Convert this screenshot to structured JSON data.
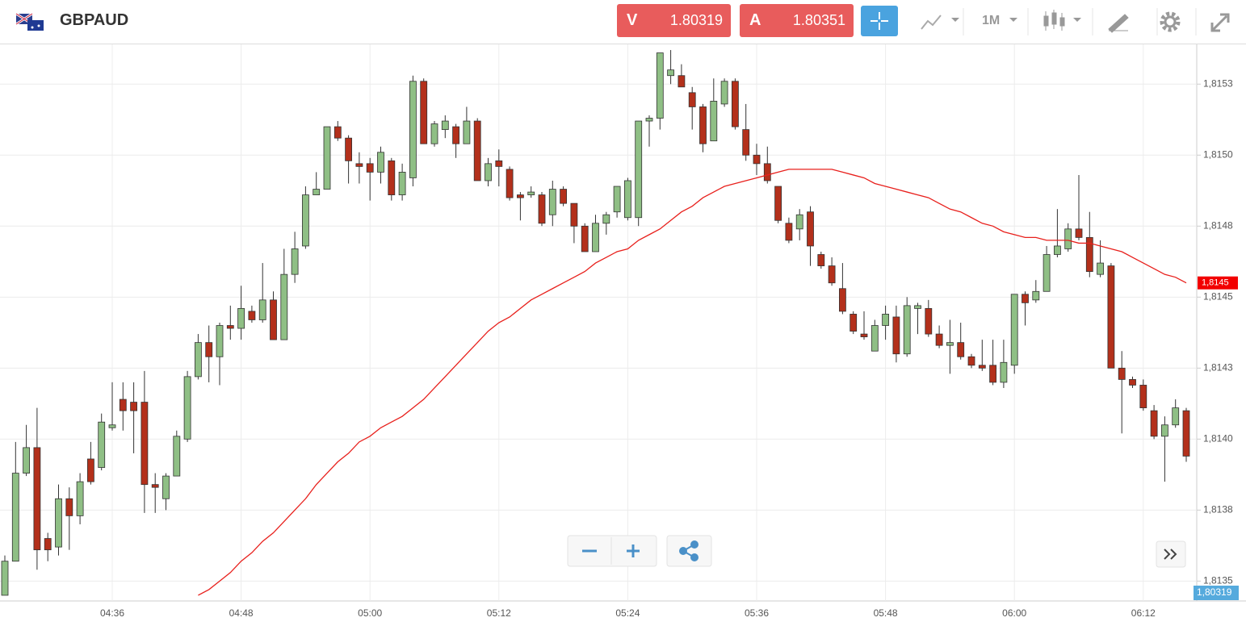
{
  "header": {
    "symbol": "GBPAUD",
    "sell": {
      "label": "V",
      "price": "1.80319"
    },
    "buy": {
      "label": "A",
      "price": "1.80351"
    },
    "timeframe": "1M"
  },
  "chart_data": {
    "type": "candlestick",
    "categories": [
      null,
      null,
      null,
      null,
      null,
      null,
      null,
      null,
      null,
      null,
      "04:36",
      null,
      null,
      null,
      null,
      null,
      null,
      null,
      null,
      null,
      null,
      null,
      "04:48",
      null,
      null,
      null,
      null,
      null,
      null,
      null,
      null,
      null,
      null,
      null,
      "05:00",
      null,
      null,
      null,
      null,
      null,
      null,
      null,
      null,
      null,
      null,
      null,
      "05:12",
      null,
      null,
      null,
      null,
      null,
      null,
      null,
      null,
      null,
      null,
      null,
      "05:24",
      null,
      null,
      null,
      null,
      null,
      null,
      null,
      null,
      null,
      null,
      null,
      "05:36",
      null,
      null,
      null,
      null,
      null,
      null,
      null,
      null,
      null,
      null,
      null,
      "05:48",
      null,
      null,
      null,
      null,
      null,
      null,
      null,
      null,
      null,
      null,
      null,
      "06:00",
      null,
      null,
      null,
      null,
      null,
      null,
      null,
      null,
      null,
      null,
      null,
      "06:12",
      null,
      null,
      null,
      null
    ],
    "open": [
      1.81345,
      1.81357,
      1.81388,
      1.81397,
      1.81365,
      1.81362,
      1.81379,
      1.81373,
      1.81393,
      1.8139,
      1.81404,
      1.81414,
      1.81413,
      1.81413,
      1.81384,
      1.81379,
      1.81387,
      1.814,
      1.81422,
      1.81434,
      1.81429,
      1.8144,
      1.81439,
      1.81445,
      1.81442,
      1.81449,
      1.81435,
      1.81458,
      1.81468,
      1.81486,
      1.81488,
      1.8151,
      1.81506,
      1.81497,
      1.81497,
      1.81494,
      1.81498,
      1.81486,
      1.81492,
      1.81526,
      1.81504,
      1.81509,
      1.8151,
      1.81504,
      1.81512,
      1.81491,
      1.81498,
      1.81495,
      1.81486,
      1.81486,
      1.81486,
      1.81479,
      1.81488,
      1.81483,
      1.81475,
      1.81466,
      1.81476,
      1.8148,
      1.81478,
      1.81478,
      1.81512,
      1.81513,
      1.81528,
      1.81528,
      1.81522,
      1.81517,
      1.81505,
      1.81518,
      1.81526,
      1.81509,
      1.815,
      1.81497,
      1.81489,
      1.81476,
      1.81474,
      1.8148,
      1.81465,
      1.81461,
      1.81453,
      1.81444,
      1.81437,
      1.81431,
      1.8144,
      1.81443,
      1.8143,
      1.81446,
      1.81446,
      1.81437,
      1.81433,
      1.81434,
      1.81429,
      1.81426,
      1.81426,
      1.8142,
      1.81426,
      1.81451,
      1.81449,
      1.81452,
      1.81465,
      1.81467,
      1.81474,
      1.81471,
      1.81458,
      1.81461,
      1.81425,
      1.81421,
      1.81419,
      1.8141,
      1.81401,
      1.81405,
      1.8141
    ],
    "high": [
      1.81359,
      1.81399,
      1.81405,
      1.81411,
      1.81367,
      1.81384,
      1.81383,
      1.81388,
      1.81399,
      1.81409,
      1.8142,
      1.8142,
      1.8142,
      1.81424,
      1.81388,
      1.81388,
      1.81403,
      1.81424,
      1.81437,
      1.8144,
      1.81441,
      1.81447,
      1.81454,
      1.81447,
      1.81462,
      1.81452,
      1.81467,
      1.81473,
      1.81489,
      1.81494,
      1.8151,
      1.81512,
      1.81507,
      1.81501,
      1.81499,
      1.81503,
      1.81499,
      1.81497,
      1.81528,
      1.81527,
      1.81512,
      1.81514,
      1.81511,
      1.81517,
      1.81513,
      1.81499,
      1.81502,
      1.81496,
      1.81487,
      1.81489,
      1.81487,
      1.81491,
      1.81489,
      1.81483,
      1.81476,
      1.81479,
      1.8148,
      1.81489,
      1.81492,
      1.81512,
      1.81514,
      1.81536,
      1.81537,
      1.81532,
      1.81524,
      1.81518,
      1.81527,
      1.81527,
      1.81527,
      1.81518,
      1.81504,
      1.81503,
      1.81489,
      1.81478,
      1.81481,
      1.81482,
      1.81466,
      1.81464,
      1.81462,
      1.81445,
      1.81445,
      1.81442,
      1.81447,
      1.81447,
      1.8145,
      1.81448,
      1.81449,
      1.8144,
      1.81442,
      1.81441,
      1.8143,
      1.81435,
      1.81435,
      1.81435,
      1.81451,
      1.81452,
      1.81456,
      1.81468,
      1.81481,
      1.81476,
      1.81493,
      1.8148,
      1.8147,
      1.81462,
      1.81431,
      1.81422,
      1.81421,
      1.81412,
      1.81408,
      1.81414,
      1.81411
    ],
    "low": [
      1.81345,
      1.81357,
      1.81387,
      1.81354,
      1.81357,
      1.81359,
      1.81361,
      1.8137,
      1.81384,
      1.81389,
      1.81403,
      1.81403,
      1.81395,
      1.81374,
      1.81374,
      1.81375,
      1.81387,
      1.81399,
      1.81421,
      1.8142,
      1.81419,
      1.81435,
      1.81435,
      1.81441,
      1.81441,
      1.81435,
      1.81435,
      1.81455,
      1.81467,
      1.81486,
      1.81488,
      1.81505,
      1.8149,
      1.8149,
      1.81484,
      1.8149,
      1.81484,
      1.81484,
      1.81489,
      1.81504,
      1.81503,
      1.81506,
      1.81499,
      1.81504,
      1.81491,
      1.81489,
      1.81489,
      1.81484,
      1.81477,
      1.81485,
      1.81475,
      1.81475,
      1.81482,
      1.81469,
      1.81466,
      1.81466,
      1.81472,
      1.81478,
      1.81477,
      1.81475,
      1.81503,
      1.81509,
      1.81525,
      1.81524,
      1.81509,
      1.81501,
      1.81505,
      1.81517,
      1.81509,
      1.81498,
      1.81493,
      1.8149,
      1.81476,
      1.81469,
      1.8147,
      1.81461,
      1.8146,
      1.81454,
      1.81444,
      1.81437,
      1.81435,
      1.81431,
      1.81435,
      1.81427,
      1.81429,
      1.81437,
      1.81436,
      1.81432,
      1.81423,
      1.81428,
      1.81425,
      1.81424,
      1.81419,
      1.81418,
      1.81423,
      1.8144,
      1.81448,
      1.81452,
      1.81464,
      1.81466,
      1.8147,
      1.81457,
      1.81457,
      1.81425,
      1.81402,
      1.81418,
      1.8141,
      1.814,
      1.81385,
      1.81404,
      1.81392
    ],
    "close": [
      1.81357,
      1.81388,
      1.81397,
      1.81361,
      1.81361,
      1.81379,
      1.81373,
      1.81385,
      1.81385,
      1.81406,
      1.81405,
      1.8141,
      1.8141,
      1.81384,
      1.81383,
      1.81387,
      1.81401,
      1.81422,
      1.81434,
      1.81429,
      1.8144,
      1.81439,
      1.81446,
      1.81442,
      1.81449,
      1.81435,
      1.81458,
      1.81467,
      1.81486,
      1.81488,
      1.8151,
      1.81506,
      1.81498,
      1.81496,
      1.81494,
      1.81501,
      1.81486,
      1.81494,
      1.81526,
      1.81504,
      1.81511,
      1.81512,
      1.81504,
      1.81512,
      1.81491,
      1.81497,
      1.81496,
      1.81485,
      1.81485,
      1.81487,
      1.81476,
      1.81488,
      1.81483,
      1.81475,
      1.81466,
      1.81476,
      1.81479,
      1.81489,
      1.81491,
      1.81512,
      1.81513,
      1.81536,
      1.8153,
      1.81524,
      1.81517,
      1.81504,
      1.81519,
      1.81526,
      1.8151,
      1.815,
      1.81497,
      1.81491,
      1.81477,
      1.8147,
      1.81479,
      1.81468,
      1.81461,
      1.81455,
      1.81445,
      1.81438,
      1.81436,
      1.8144,
      1.81444,
      1.8143,
      1.81447,
      1.81447,
      1.81437,
      1.81433,
      1.81434,
      1.81429,
      1.81426,
      1.81425,
      1.8142,
      1.81427,
      1.81451,
      1.81448,
      1.81452,
      1.81465,
      1.81468,
      1.81474,
      1.81471,
      1.81459,
      1.81462,
      1.81425,
      1.81421,
      1.81419,
      1.81411,
      1.81401,
      1.81405,
      1.81411,
      1.81394
    ],
    "up_color": "#8fbf85",
    "down_color": "#b3301b",
    "line": {
      "color": "#e8201c",
      "values": [
        null,
        null,
        null,
        null,
        null,
        null,
        null,
        null,
        null,
        null,
        null,
        null,
        null,
        null,
        null,
        null,
        null,
        null,
        1.81345,
        1.81347,
        1.8135,
        1.81353,
        1.81357,
        1.8136,
        1.81364,
        1.81367,
        1.81371,
        1.81375,
        1.81379,
        1.81384,
        1.81388,
        1.81392,
        1.81395,
        1.81399,
        1.81401,
        1.81404,
        1.81406,
        1.81408,
        1.81411,
        1.81414,
        1.81418,
        1.81422,
        1.81426,
        1.8143,
        1.81434,
        1.81438,
        1.81441,
        1.81443,
        1.81446,
        1.81449,
        1.81451,
        1.81453,
        1.81455,
        1.81457,
        1.81459,
        1.81462,
        1.81464,
        1.81466,
        1.81467,
        1.8147,
        1.81472,
        1.81474,
        1.81477,
        1.8148,
        1.81482,
        1.81485,
        1.81487,
        1.81489,
        1.8149,
        1.81491,
        1.81492,
        1.81493,
        1.81494,
        1.81495,
        1.81495,
        1.81495,
        1.81495,
        1.81495,
        1.81494,
        1.81493,
        1.81492,
        1.8149,
        1.81489,
        1.81488,
        1.81487,
        1.81486,
        1.81485,
        1.81483,
        1.81481,
        1.8148,
        1.81478,
        1.81476,
        1.81475,
        1.81473,
        1.81472,
        1.81471,
        1.81471,
        1.8147,
        1.8147,
        1.8147,
        1.81469,
        1.81469,
        1.81468,
        1.81467,
        1.81466,
        1.81464,
        1.81462,
        1.8146,
        1.81458,
        1.81457,
        1.81455
      ]
    },
    "line_label": "1,8145",
    "price_tag": "1,80319",
    "ylim": [
      1.81343,
      1.81539
    ],
    "yticks": [
      {
        "value": 1.81525,
        "label": "1,8153"
      },
      {
        "value": 1.815,
        "label": "1,8150"
      },
      {
        "value": 1.81475,
        "label": "1,8148"
      },
      {
        "value": 1.8145,
        "label": "1,8145"
      },
      {
        "value": 1.81425,
        "label": "1,8143"
      },
      {
        "value": 1.814,
        "label": "1,8140"
      },
      {
        "value": 1.81375,
        "label": "1,8138"
      },
      {
        "value": 1.8135,
        "label": "1,8135"
      }
    ],
    "grid": true
  }
}
